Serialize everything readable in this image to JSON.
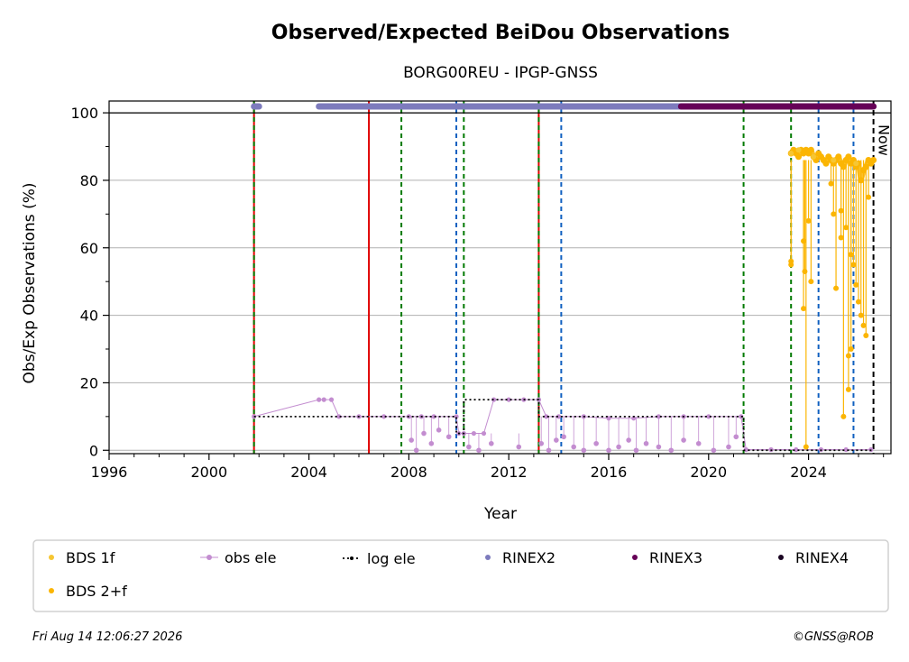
{
  "colors": {
    "bds1f": "#f6c633",
    "bds2f": "#fbb503",
    "obs_ele": "#c38dd0",
    "log_ele": "#000000",
    "rinex2": "#7d7bbd",
    "rinex3": "#660157",
    "rinex4": "#1a0522",
    "grid": "#b0b0b0",
    "vline_red": "#e00000",
    "vline_green": "#007a00",
    "vline_blue": "#1060c0"
  },
  "chart_data": {
    "type": "scatter",
    "title": "Observed/Expected BeiDou Observations",
    "subtitle": "BORG00REU - IPGP-GNSS",
    "xlabel": "Year",
    "ylabel": "Obs/Exp Observations (%)",
    "xlim": [
      1996,
      2027.3
    ],
    "ylim": [
      -1,
      103.5
    ],
    "xticks": [
      1996,
      2000,
      2004,
      2008,
      2012,
      2016,
      2020,
      2024
    ],
    "yticks": [
      0,
      20,
      40,
      60,
      80,
      100
    ],
    "grid": "horizontal",
    "now_label": "Now",
    "now_x": 2026.6,
    "legend_position": "bottom",
    "legend": [
      "BDS 1f",
      "obs ele",
      "log ele",
      "RINEX2",
      "RINEX3",
      "RINEX4",
      "BDS 2+f"
    ],
    "footer_left": "Fri Aug 14 12:06:27 2026",
    "footer_right": "©GNSS@ROB",
    "vertical_lines": [
      {
        "x": 2001.8,
        "color": "red",
        "style": "solid"
      },
      {
        "x": 2001.8,
        "color": "green",
        "style": "dashed"
      },
      {
        "x": 2006.4,
        "color": "red",
        "style": "solid"
      },
      {
        "x": 2007.7,
        "color": "green",
        "style": "dashed"
      },
      {
        "x": 2009.9,
        "color": "blue",
        "style": "dashed"
      },
      {
        "x": 2010.2,
        "color": "green",
        "style": "dashed"
      },
      {
        "x": 2013.2,
        "color": "red",
        "style": "solid"
      },
      {
        "x": 2013.2,
        "color": "green",
        "style": "dashed"
      },
      {
        "x": 2014.1,
        "color": "blue",
        "style": "dashed"
      },
      {
        "x": 2021.4,
        "color": "green",
        "style": "dashed"
      },
      {
        "x": 2023.3,
        "color": "green",
        "style": "dashed"
      },
      {
        "x": 2024.4,
        "color": "blue",
        "style": "dashed"
      },
      {
        "x": 2025.8,
        "color": "blue",
        "style": "dashed"
      }
    ],
    "rinex_bars": [
      {
        "name": "RINEX2",
        "x_start": 2001.8,
        "x_end": 2002.0
      },
      {
        "name": "RINEX2",
        "x_start": 2004.4,
        "x_end": 2005.8
      },
      {
        "name": "RINEX2",
        "x_start": 2005.8,
        "x_end": 2018.9
      },
      {
        "name": "RINEX3",
        "x_start": 2018.9,
        "x_end": 2026.6
      }
    ],
    "log_ele": {
      "name": "log ele",
      "x": [
        2001.8,
        2004.9,
        2004.9,
        2009.9,
        2009.9,
        2010.2,
        2010.2,
        2013.2,
        2013.2,
        2021.4,
        2021.4,
        2026.6
      ],
      "y": [
        10,
        10,
        10,
        10,
        5,
        5,
        15,
        15,
        10,
        10,
        0,
        0
      ]
    },
    "obs_ele": {
      "name": "obs ele",
      "x": [
        2001.8,
        2004.4,
        2004.6,
        2004.9,
        2005.2,
        2006.0,
        2007.0,
        2008.0,
        2008.5,
        2009.0,
        2009.9,
        2010.0,
        2010.2,
        2010.6,
        2011.0,
        2011.4,
        2012.0,
        2012.6,
        2013.2,
        2013.5,
        2014.0,
        2015.0,
        2016.0,
        2017.0,
        2018.0,
        2019.0,
        2020.0,
        2021.3,
        2021.5,
        2022.5,
        2023.5,
        2024.5,
        2025.5,
        2026.5
      ],
      "y": [
        10,
        15,
        15,
        15,
        10,
        10,
        10,
        10,
        10,
        10,
        10,
        5,
        5,
        5,
        5,
        15,
        15,
        15,
        15,
        10,
        10,
        10,
        9.5,
        9.5,
        10,
        10,
        10,
        10,
        0.2,
        0.2,
        0.2,
        0.2,
        0.2,
        0.2
      ],
      "dips_x": [
        2008.1,
        2008.3,
        2008.6,
        2008.9,
        2009.2,
        2009.6,
        2010.4,
        2010.8,
        2011.3,
        2012.4,
        2013.3,
        2013.6,
        2013.9,
        2014.2,
        2014.6,
        2015.0,
        2015.5,
        2016.0,
        2016.4,
        2016.8,
        2017.1,
        2017.5,
        2018.0,
        2018.5,
        2019.0,
        2019.6,
        2020.2,
        2020.8,
        2021.1
      ],
      "dips_y": [
        3,
        0,
        5,
        2,
        6,
        4,
        1,
        0,
        2,
        1,
        2,
        0,
        3,
        4,
        1,
        0,
        2,
        0,
        1,
        3,
        0,
        2,
        1,
        0,
        3,
        2,
        0,
        1,
        4
      ]
    },
    "series": [
      {
        "name": "BDS 2+f",
        "x": [
          2023.3,
          2023.4,
          2023.5,
          2023.6,
          2023.7,
          2023.8,
          2023.9,
          2024.0,
          2024.1,
          2024.2,
          2024.3,
          2024.4,
          2024.5,
          2024.6,
          2024.7,
          2024.8,
          2024.9,
          2025.0,
          2025.1,
          2025.2,
          2025.3,
          2025.4,
          2025.5,
          2025.6,
          2025.7,
          2025.8,
          2025.9,
          2026.0,
          2026.1,
          2026.2,
          2026.3,
          2026.4,
          2026.5,
          2026.6
        ],
        "y": [
          88,
          89,
          88,
          87,
          89,
          88,
          89,
          88,
          89,
          87,
          86,
          88,
          87,
          86,
          85,
          87,
          86,
          85,
          86,
          87,
          85,
          84,
          86,
          87,
          85,
          86,
          84,
          85,
          80,
          83,
          84,
          86,
          85,
          86
        ]
      },
      {
        "name": "BDS 2+f outliers",
        "x": [
          2023.3,
          2023.3,
          2023.8,
          2023.8,
          2023.85,
          2023.9,
          2024.0,
          2024.1,
          2024.9,
          2025.0,
          2025.1,
          2025.3,
          2025.3,
          2025.4,
          2025.5,
          2025.6,
          2025.6,
          2025.7,
          2025.7,
          2025.8,
          2025.9,
          2026.0,
          2026.1,
          2026.2,
          2026.3,
          2026.4
        ],
        "y": [
          56,
          55,
          62,
          42,
          53,
          1,
          68,
          50,
          79,
          70,
          48,
          71,
          63,
          10,
          66,
          28,
          18,
          30,
          58,
          55,
          49,
          44,
          40,
          37,
          34,
          75
        ]
      },
      {
        "name": "BDS 1f",
        "x": [
          2023.3,
          2023.6,
          2024.2,
          2025.0,
          2025.9
        ],
        "y": [
          88,
          89,
          87,
          86,
          85
        ]
      }
    ]
  }
}
